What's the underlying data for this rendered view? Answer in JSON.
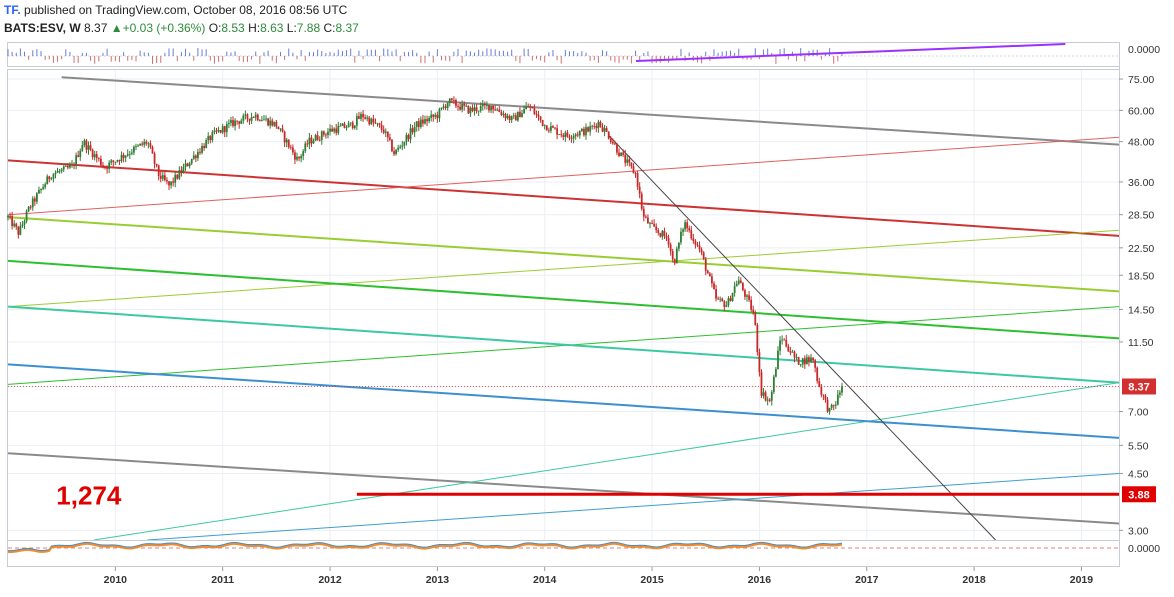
{
  "header": {
    "logo": "TF.",
    "published": "published on TradingView.com, October 08, 2016 08:56 UTC",
    "symbol": "BATS:ESV, W",
    "last": "8.37",
    "change": "+0.03 (+0.36%)",
    "open_label": "O:",
    "open": "8.53",
    "high_label": "H:",
    "high": "8.63",
    "low_label": "L:",
    "low": "7.88",
    "close_label": "C:",
    "close": "8.37"
  },
  "colors": {
    "up": "#2e7d32",
    "down": "#c62828",
    "red_line": "#e00000",
    "price_label": "#d32f2f",
    "grid": "#ebeef3",
    "axis_text": "#333333"
  },
  "chart_data": {
    "type": "candlestick",
    "scale": "log",
    "x_range": [
      2009.0,
      2019.35
    ],
    "y_range": [
      2.8,
      80
    ],
    "x_ticks": [
      "2010",
      "2011",
      "2012",
      "2013",
      "2014",
      "2015",
      "2016",
      "2017",
      "2018",
      "2019"
    ],
    "y_ticks": [
      3.0,
      4.5,
      5.5,
      7.0,
      8.37,
      11.5,
      14.5,
      18.5,
      22.5,
      28.5,
      36.0,
      48.0,
      60.0,
      75.0
    ],
    "y_tick_labels": [
      "3.00",
      "4.50",
      "5.50",
      "7.00",
      "8.37",
      "11.50",
      "14.50",
      "18.50",
      "22.50",
      "28.50",
      "36.00",
      "48.00",
      "60.00",
      "75.00"
    ],
    "price_anchors": [
      [
        2009.0,
        28
      ],
      [
        2009.1,
        25
      ],
      [
        2009.2,
        30
      ],
      [
        2009.4,
        38
      ],
      [
        2009.6,
        40
      ],
      [
        2009.7,
        48
      ],
      [
        2009.9,
        40
      ],
      [
        2010.1,
        44
      ],
      [
        2010.3,
        48
      ],
      [
        2010.4,
        38
      ],
      [
        2010.5,
        35
      ],
      [
        2010.7,
        42
      ],
      [
        2010.9,
        50
      ],
      [
        2011.1,
        55
      ],
      [
        2011.3,
        58
      ],
      [
        2011.5,
        54
      ],
      [
        2011.7,
        42
      ],
      [
        2011.8,
        48
      ],
      [
        2012.0,
        52
      ],
      [
        2012.2,
        54
      ],
      [
        2012.3,
        58
      ],
      [
        2012.5,
        52
      ],
      [
        2012.6,
        44
      ],
      [
        2012.8,
        54
      ],
      [
        2013.0,
        58
      ],
      [
        2013.1,
        64
      ],
      [
        2013.3,
        60
      ],
      [
        2013.5,
        62
      ],
      [
        2013.7,
        56
      ],
      [
        2013.85,
        62
      ],
      [
        2014.0,
        54
      ],
      [
        2014.2,
        50
      ],
      [
        2014.4,
        52
      ],
      [
        2014.5,
        55
      ],
      [
        2014.6,
        50
      ],
      [
        2014.7,
        44
      ],
      [
        2014.85,
        38
      ],
      [
        2014.92,
        28
      ],
      [
        2015.0,
        26
      ],
      [
        2015.15,
        24
      ],
      [
        2015.2,
        20
      ],
      [
        2015.3,
        27
      ],
      [
        2015.45,
        22
      ],
      [
        2015.6,
        15.5
      ],
      [
        2015.7,
        15
      ],
      [
        2015.8,
        18
      ],
      [
        2015.95,
        14
      ],
      [
        2016.02,
        8.0
      ],
      [
        2016.1,
        7.5
      ],
      [
        2016.2,
        12
      ],
      [
        2016.35,
        10
      ],
      [
        2016.5,
        10.2
      ],
      [
        2016.55,
        8.5
      ],
      [
        2016.65,
        7.0
      ],
      [
        2016.7,
        7.3
      ],
      [
        2016.77,
        8.37
      ]
    ],
    "last_price": 8.37,
    "last_price_label": "8.37",
    "annotations": [
      {
        "text": "1,274",
        "x": 2009.45,
        "y": 3.85
      },
      {
        "text": "3.88",
        "horizontal_line": 3.88,
        "x_start": 2012.25
      }
    ],
    "trend_lines": [
      {
        "color": "#8a8a8a",
        "width": 2,
        "p1": [
          2009.5,
          76
        ],
        "p2": [
          2019.35,
          47
        ]
      },
      {
        "color": "#8a8a8a",
        "width": 2,
        "p1": [
          2009.0,
          5.2
        ],
        "p2": [
          2019.35,
          3.15
        ]
      },
      {
        "color": "#cc3333",
        "width": 2,
        "p1": [
          2009.0,
          42
        ],
        "p2": [
          2019.35,
          24.5
        ]
      },
      {
        "color": "#e06060",
        "width": 1,
        "p1": [
          2009.0,
          28.5
        ],
        "p2": [
          2019.35,
          49.5
        ]
      },
      {
        "color": "#9acd32",
        "width": 2,
        "p1": [
          2009.0,
          28
        ],
        "p2": [
          2019.35,
          16.5
        ]
      },
      {
        "color": "#9acd32",
        "width": 1,
        "p1": [
          2009.0,
          14.8
        ],
        "p2": [
          2019.35,
          25.5
        ]
      },
      {
        "color": "#2ebf2e",
        "width": 2,
        "p1": [
          2009.0,
          20.5
        ],
        "p2": [
          2019.35,
          11.8
        ]
      },
      {
        "color": "#2ebf2e",
        "width": 1,
        "p1": [
          2009.0,
          8.5
        ],
        "p2": [
          2019.35,
          14.8
        ]
      },
      {
        "color": "#3cc8a0",
        "width": 2,
        "p1": [
          2009.0,
          14.8
        ],
        "p2": [
          2019.35,
          8.6
        ]
      },
      {
        "color": "#3cc8a0",
        "width": 1,
        "p1": [
          2009.8,
          2.8
        ],
        "p2": [
          2019.35,
          8.6
        ]
      },
      {
        "color": "#3c8fd0",
        "width": 2,
        "p1": [
          2009.0,
          9.8
        ],
        "p2": [
          2019.35,
          5.8
        ]
      },
      {
        "color": "#3c9fd0",
        "width": 1,
        "p1": [
          2010.3,
          2.8
        ],
        "p2": [
          2019.35,
          4.5
        ]
      },
      {
        "color": "#444444",
        "width": 1,
        "p1": [
          2014.6,
          50
        ],
        "p2": [
          2018.2,
          2.8
        ]
      }
    ],
    "top_indicator": {
      "tick_label": "0.0000",
      "line": {
        "color": "#9b30ff",
        "x": [
          2014.85,
          2018.85
        ]
      }
    },
    "bottom_indicator": {
      "tick_label": "0.0000"
    }
  }
}
